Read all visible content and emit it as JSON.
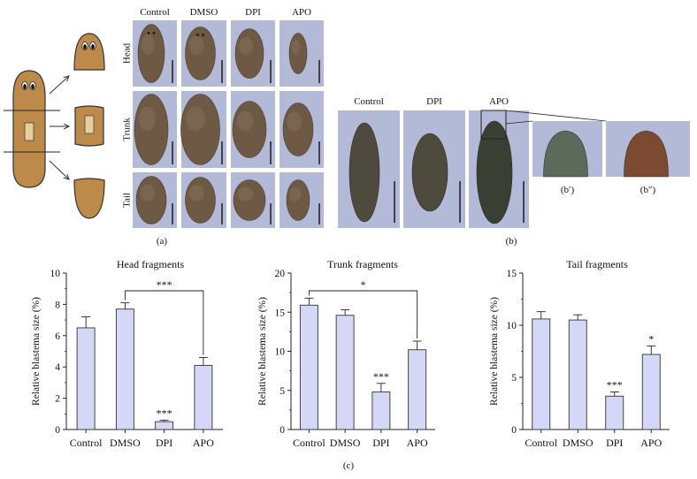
{
  "panel_a": {
    "label": "(a)",
    "columns": [
      "Control",
      "DMSO",
      "DPI",
      "APO"
    ],
    "rows": [
      "Head",
      "Trunk",
      "Tail"
    ]
  },
  "panel_b": {
    "label": "(b)",
    "columns": [
      "Control",
      "DPI",
      "APO"
    ],
    "insets": [
      "(b′)",
      "(b″)"
    ]
  },
  "panel_c": {
    "label": "(c)"
  },
  "colors": {
    "bar_fill": "#d4d8f6",
    "bar_stroke": "#333333",
    "photo_bg": "#b3bad8",
    "worm_body": "#bd8a4a",
    "worm_tissue": "#6e5a44"
  },
  "chart_data": [
    {
      "type": "bar",
      "title": "Head fragments",
      "ylabel": "Relative blastema size (%)",
      "categories": [
        "Control",
        "DMSO",
        "DPI",
        "APO"
      ],
      "values": [
        6.5,
        7.7,
        0.5,
        4.1
      ],
      "errors": [
        0.7,
        0.4,
        0.1,
        0.5
      ],
      "ylim": [
        0,
        10
      ],
      "yticks": [
        "0",
        "2",
        "4",
        "6",
        "8",
        "10"
      ],
      "annotations": [
        "",
        "",
        "***",
        ""
      ],
      "bracket": {
        "from": 1,
        "to": 3,
        "label": "***"
      }
    },
    {
      "type": "bar",
      "title": "Trunk fragments",
      "ylabel": "Relative blastema size (%)",
      "categories": [
        "Control",
        "DMSO",
        "DPI",
        "APO"
      ],
      "values": [
        15.9,
        14.6,
        4.8,
        10.2
      ],
      "errors": [
        0.9,
        0.7,
        1.1,
        1.1
      ],
      "ylim": [
        0,
        20
      ],
      "yticks": [
        "0",
        "5",
        "10",
        "15",
        "20"
      ],
      "annotations": [
        "",
        "",
        "***",
        ""
      ],
      "bracket": {
        "from": 0,
        "to": 3,
        "label": "*"
      }
    },
    {
      "type": "bar",
      "title": "Tail fragments",
      "ylabel": "Relative blastema size (%)",
      "categories": [
        "Control",
        "DMSO",
        "DPI",
        "APO"
      ],
      "values": [
        10.6,
        10.5,
        3.2,
        7.2
      ],
      "errors": [
        0.7,
        0.5,
        0.4,
        0.8
      ],
      "ylim": [
        0,
        15
      ],
      "yticks": [
        "0",
        "5",
        "10",
        "15"
      ],
      "annotations": [
        "",
        "",
        "***",
        "*"
      ],
      "bracket": null
    }
  ]
}
